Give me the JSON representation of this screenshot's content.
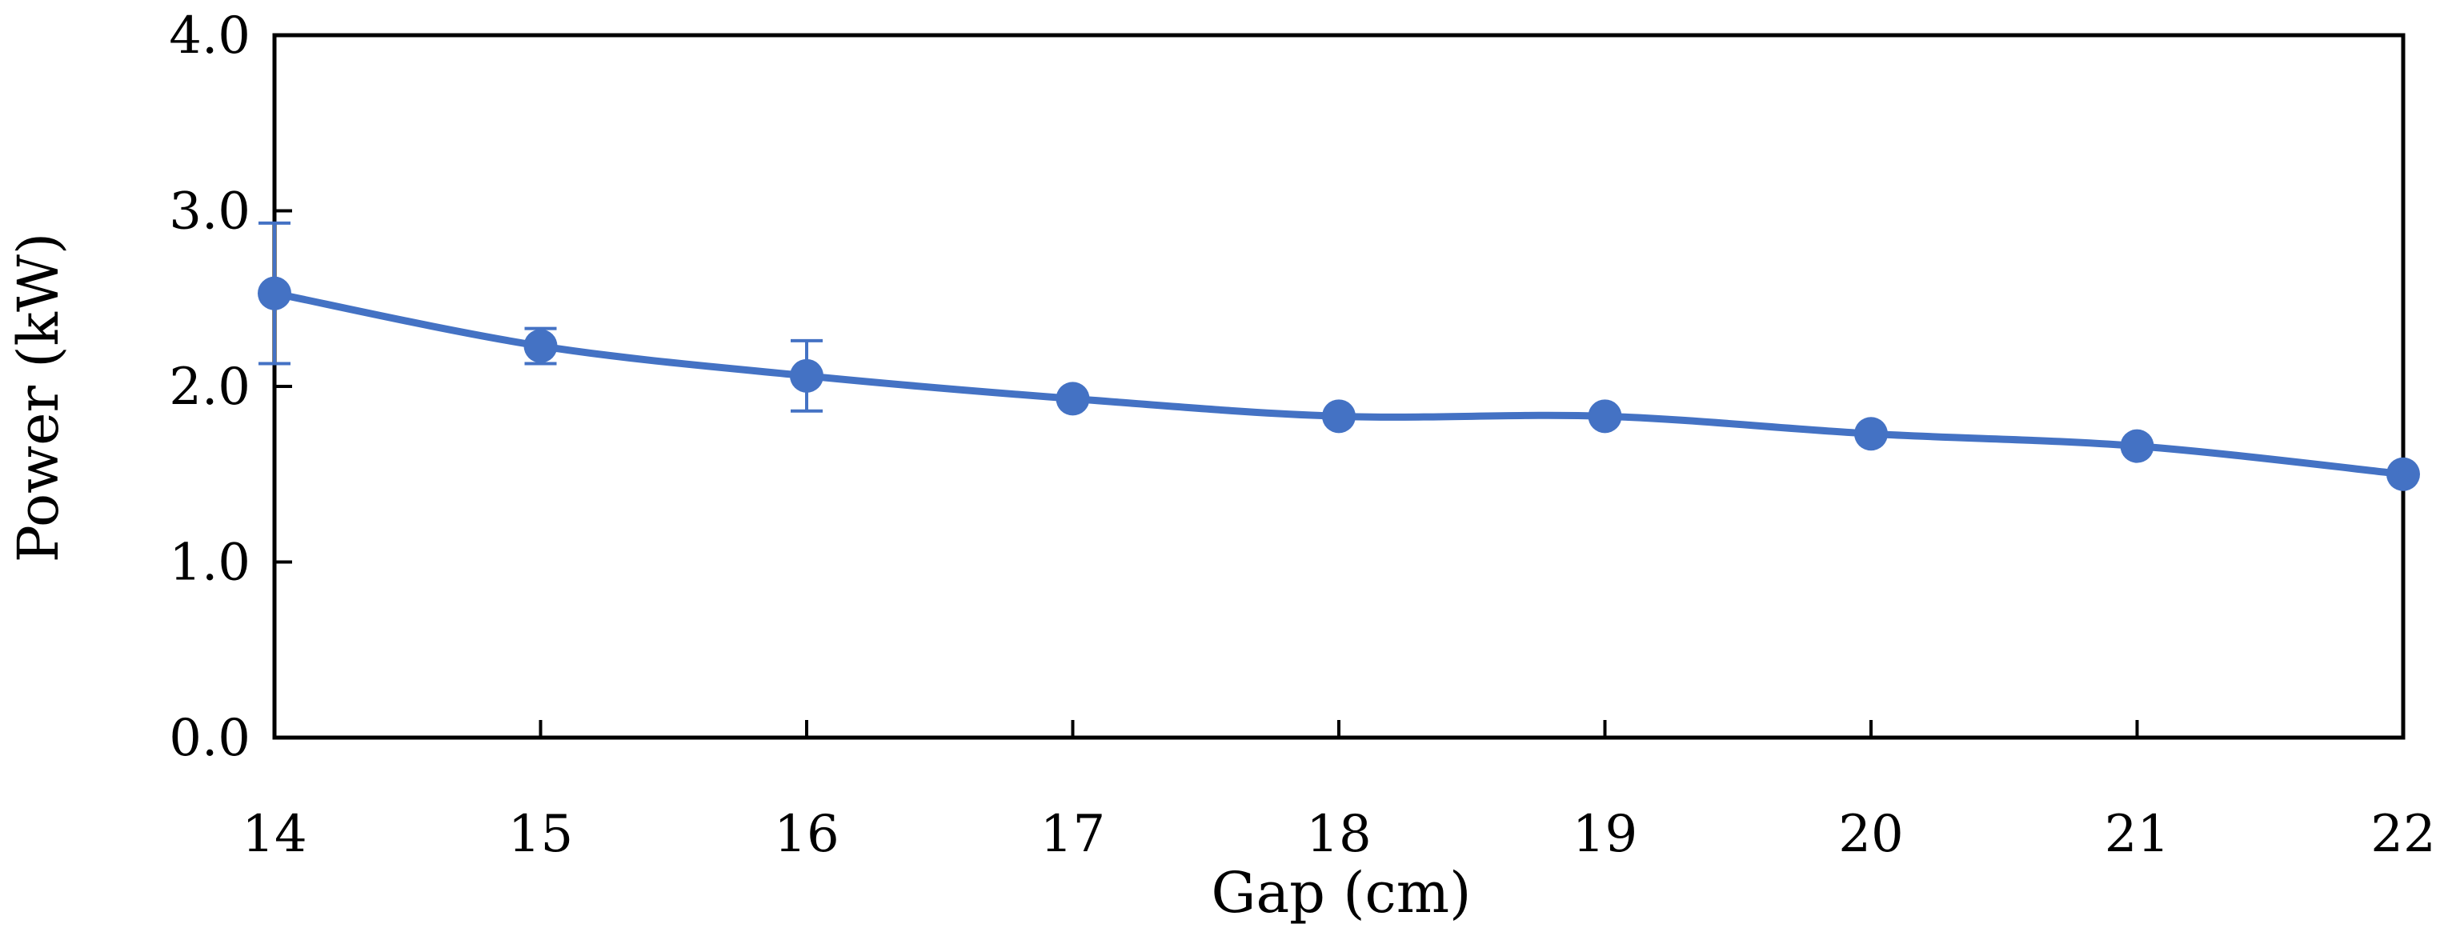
{
  "chart_data": {
    "type": "line",
    "title": "",
    "xlabel": "Gap (cm)",
    "ylabel": "Power (kW)",
    "xlim": [
      14,
      22
    ],
    "ylim": [
      0,
      4
    ],
    "x_ticks": [
      "14",
      "15",
      "16",
      "17",
      "18",
      "19",
      "20",
      "21",
      "22"
    ],
    "y_ticks": [
      "0.0",
      "1.0",
      "2.0",
      "3.0",
      "4.0"
    ],
    "grid": false,
    "legend": "none",
    "smooth": true,
    "series": [
      {
        "color": "#4472C4",
        "x": [
          14,
          15,
          16,
          17,
          18,
          19,
          20,
          21,
          22
        ],
        "y": [
          2.53,
          2.23,
          2.06,
          1.93,
          1.83,
          1.83,
          1.73,
          1.66,
          1.5
        ],
        "error": [
          0.4,
          0.1,
          0.2,
          0,
          0,
          0,
          0,
          0,
          0
        ]
      }
    ]
  }
}
